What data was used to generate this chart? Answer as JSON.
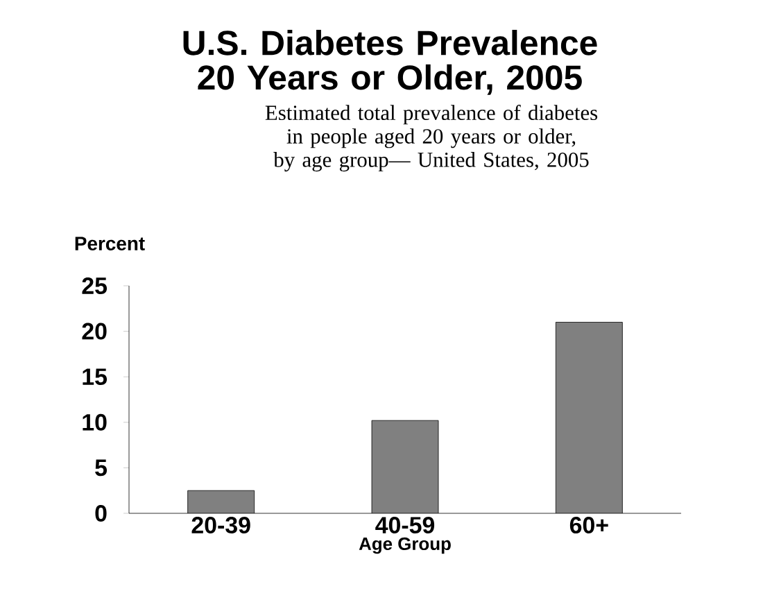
{
  "chart_data": {
    "type": "bar",
    "title": "U.S. Diabetes Prevalence 20 Years or Older, 2005",
    "subtitle": "Estimated total prevalence of diabetes in people aged 20 years or older, by age group— United States, 2005",
    "ylabel": "Percent",
    "xlabel": "Age Group",
    "categories": [
      "20-39",
      "40-59",
      "60+"
    ],
    "values": [
      2.5,
      10.2,
      21.0
    ],
    "color": "#808080",
    "ylim": [
      0,
      25
    ],
    "yticks": [
      0,
      5,
      10,
      15,
      20,
      25
    ],
    "grid": false
  }
}
